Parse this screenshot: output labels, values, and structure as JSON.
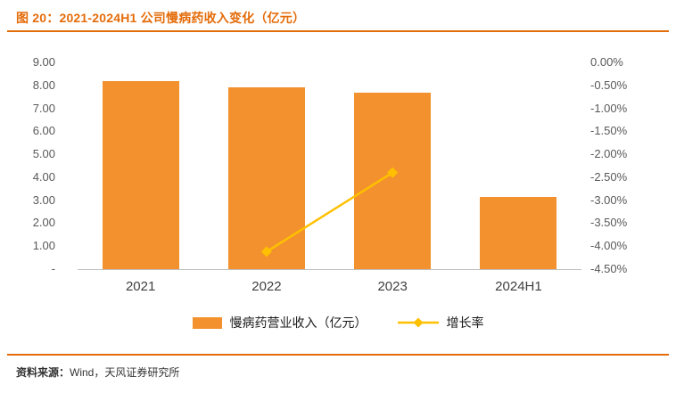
{
  "header": {
    "title": "图 20：2021-2024H1 公司慢病药收入变化（亿元）"
  },
  "footer": {
    "source_label": "资料来源：",
    "source_body": "Wind，天风证券研究所"
  },
  "colors": {
    "accent": "#E46C0A",
    "bar": "#F2912D",
    "line": "#FFC000",
    "axis_text": "#595959",
    "category_text": "#3F3F3F",
    "axis_line": "#BFBFBF"
  },
  "chart_data": {
    "type": "bar",
    "subtype": "bar+line combo, dual axis",
    "title": "图 20：2021-2024H1 公司慢病药收入变化（亿元）",
    "categories": [
      "2021",
      "2022",
      "2023",
      "2024H1"
    ],
    "series": [
      {
        "name": "慢病药营业收入（亿元）",
        "type": "bar",
        "axis": "left",
        "values": [
          8.2,
          7.9,
          7.7,
          3.15
        ]
      },
      {
        "name": "增长率",
        "type": "line",
        "axis": "right",
        "values": [
          null,
          -4.12,
          -2.4,
          null
        ]
      }
    ],
    "left_axis": {
      "min": 0,
      "max": 9,
      "tick_labels": [
        "9.00",
        "8.00",
        "7.00",
        "6.00",
        "5.00",
        "4.00",
        "3.00",
        "2.00",
        "1.00",
        "-"
      ]
    },
    "right_axis": {
      "min": -4.5,
      "max": 0,
      "tick_labels": [
        "0.00%",
        "-0.50%",
        "-1.00%",
        "-1.50%",
        "-2.00%",
        "-2.50%",
        "-3.00%",
        "-3.50%",
        "-4.00%",
        "-4.50%"
      ]
    },
    "grid": false,
    "legend_position": "bottom"
  }
}
